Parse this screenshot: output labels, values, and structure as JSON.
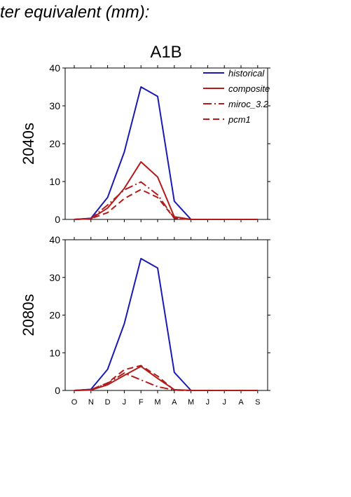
{
  "header": {
    "text": "ter equivalent (mm):"
  },
  "scenario": "A1B",
  "colors": {
    "historical": "#1a1ab3",
    "projection": "#b31a1a"
  },
  "chart_data": {
    "type": "line",
    "categories": [
      "O",
      "N",
      "D",
      "J",
      "F",
      "M",
      "A",
      "M",
      "J",
      "J",
      "A",
      "S"
    ],
    "ylim": [
      0,
      40
    ],
    "yticks": [
      0,
      10,
      20,
      30,
      40
    ],
    "legend_position": "top-right",
    "series_styles": [
      {
        "name": "historical",
        "color": "#1a1ab3",
        "dash": ""
      },
      {
        "name": "composite",
        "color": "#b31a1a",
        "dash": ""
      },
      {
        "name": "miroc_3.2",
        "color": "#b31a1a",
        "dash": "12,4,2,4"
      },
      {
        "name": "pcm1",
        "color": "#b31a1a",
        "dash": "9,5"
      }
    ],
    "panels": [
      {
        "label": "2040s",
        "series": [
          {
            "name": "historical",
            "values": [
              0,
              0.3,
              5.8,
              17.8,
              35,
              32.5,
              4.8,
              0,
              0,
              0,
              0,
              0
            ]
          },
          {
            "name": "composite",
            "values": [
              0,
              0.2,
              3.0,
              8.2,
              15.2,
              11.2,
              0.7,
              0,
              0,
              0,
              0,
              0
            ]
          },
          {
            "name": "miroc_3.2",
            "values": [
              0,
              0.2,
              3.8,
              7.8,
              9.9,
              6.5,
              0.3,
              0,
              0,
              0,
              0,
              0
            ]
          },
          {
            "name": "pcm1",
            "values": [
              0,
              0.2,
              1.8,
              5.5,
              7.9,
              5.8,
              0.3,
              0,
              0,
              0,
              0,
              0
            ]
          }
        ]
      },
      {
        "label": "2080s",
        "series": [
          {
            "name": "historical",
            "values": [
              0,
              0.3,
              5.6,
              17.7,
              35,
              32.5,
              4.8,
              0,
              0,
              0,
              0,
              0
            ]
          },
          {
            "name": "composite",
            "values": [
              0,
              0.1,
              1.5,
              4.0,
              6.4,
              3.2,
              0.2,
              0,
              0,
              0,
              0,
              0
            ]
          },
          {
            "name": "miroc_3.2",
            "values": [
              0,
              0.2,
              1.9,
              4.6,
              2.8,
              1.0,
              0.1,
              0,
              0,
              0,
              0,
              0
            ]
          },
          {
            "name": "pcm1",
            "values": [
              0,
              0.2,
              2.0,
              5.5,
              6.6,
              3.8,
              0.1,
              0,
              0,
              0,
              0,
              0
            ]
          }
        ]
      }
    ]
  }
}
